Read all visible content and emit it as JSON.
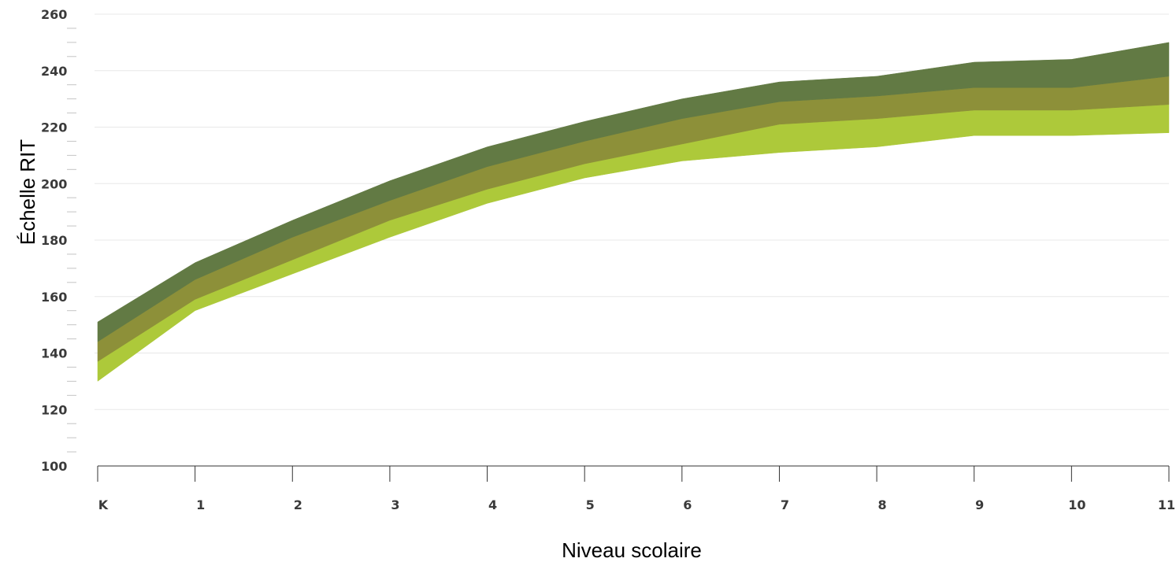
{
  "chart_data": {
    "type": "area",
    "title": "",
    "xlabel": "Niveau scolaire",
    "ylabel": "Échelle RIT",
    "categories": [
      "K",
      "1",
      "2",
      "3",
      "4",
      "5",
      "6",
      "7",
      "8",
      "9",
      "10",
      "11"
    ],
    "ylim": [
      100,
      260
    ],
    "yticks": [
      "100",
      "120",
      "140",
      "160",
      "180",
      "200",
      "220",
      "240",
      "260"
    ],
    "grid": true,
    "legend": "none",
    "bands": [
      {
        "lower": [
          130,
          155,
          168,
          181,
          193,
          202,
          208,
          211,
          213,
          217,
          217,
          218
        ],
        "upper": [
          137,
          159,
          173,
          187,
          198,
          207,
          214,
          221,
          223,
          226,
          226,
          228
        ],
        "color": "#adc93a"
      },
      {
        "lower": [
          137,
          159,
          173,
          187,
          198,
          207,
          214,
          221,
          223,
          226,
          226,
          228
        ],
        "upper": [
          144,
          166,
          181,
          194,
          206,
          215,
          223,
          229,
          231,
          234,
          234,
          238
        ],
        "color": "#8d9039"
      },
      {
        "lower": [
          144,
          166,
          181,
          194,
          206,
          215,
          223,
          229,
          231,
          234,
          234,
          238
        ],
        "upper": [
          151,
          172,
          187,
          201,
          213,
          222,
          230,
          236,
          238,
          243,
          244,
          250
        ],
        "color": "#627a44"
      }
    ]
  }
}
